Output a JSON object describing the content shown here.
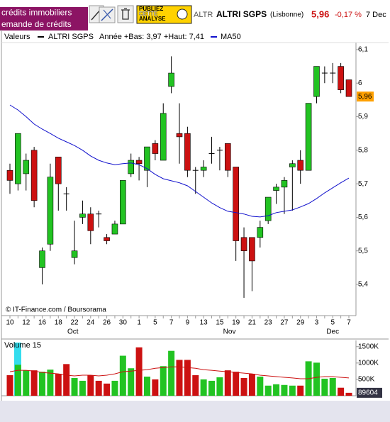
{
  "toolbar": {
    "ads": [
      "crédits immobiliers",
      "emande de crédits"
    ],
    "publish": [
      "PUBLIEZ",
      "CETTE",
      "ANALYSE"
    ]
  },
  "header": {
    "code": "ALTR",
    "name": "ALTRI SGPS",
    "market": "(Lisbonne)",
    "price": "5,96",
    "change": "-0,17 %",
    "date": "7 Dec"
  },
  "chart_data": [
    {
      "type": "candlestick",
      "legend_title": "Valeurs",
      "subtitle": "Année +Bas: 3,97 +Haut: 7,41",
      "annotation": "© IT-Finance.com / Boursorama",
      "categories": [
        "10",
        null,
        "12",
        null,
        "16",
        null,
        "18",
        null,
        "22",
        null,
        "24",
        null,
        "26",
        null,
        "30",
        null,
        "1",
        null,
        "5",
        null,
        "7",
        null,
        "9",
        null,
        "13",
        null,
        "15",
        null,
        "19",
        null,
        "21",
        null,
        "23",
        null,
        "27",
        null,
        "29",
        null,
        "3",
        null,
        "5",
        null,
        "7"
      ],
      "months": [
        "Oct",
        "Nov",
        "Dec"
      ],
      "up_color": "#22c322",
      "down_color": "#cc1111",
      "series": [
        {
          "name": "ALTRI SGPS",
          "color": "#000000",
          "open": [
            5.74,
            5.7,
            5.73,
            5.8,
            5.45,
            5.52,
            5.78,
            5.67,
            5.48,
            5.6,
            5.61,
            5.61,
            5.54,
            5.55,
            5.58,
            5.73,
            5.77,
            5.74,
            5.82,
            5.77,
            5.99,
            5.85,
            5.85,
            5.74,
            5.74,
            5.79,
            5.8,
            5.82,
            5.75,
            5.54,
            5.54,
            5.54,
            5.59,
            5.68,
            5.69,
            5.75,
            5.77,
            5.74,
            5.96,
            6.03,
            6.03,
            6.05,
            6.01
          ],
          "high": [
            5.76,
            5.85,
            5.79,
            5.81,
            5.51,
            5.76,
            5.78,
            5.69,
            5.59,
            5.65,
            5.63,
            5.62,
            5.55,
            5.59,
            5.71,
            5.79,
            5.78,
            5.81,
            5.83,
            5.94,
            6.08,
            5.94,
            5.87,
            5.75,
            5.77,
            5.84,
            5.81,
            5.82,
            5.75,
            5.57,
            5.54,
            5.59,
            5.66,
            5.7,
            5.72,
            5.77,
            5.8,
            5.94,
            6.05,
            6.05,
            6.06,
            6.06,
            6.01
          ],
          "low": [
            5.67,
            5.68,
            5.68,
            5.63,
            5.4,
            5.5,
            5.62,
            5.62,
            5.46,
            5.58,
            5.52,
            5.57,
            5.52,
            5.55,
            5.58,
            5.72,
            5.71,
            5.69,
            5.77,
            5.77,
            5.97,
            5.76,
            5.72,
            5.67,
            5.72,
            5.76,
            5.74,
            5.72,
            5.47,
            5.36,
            5.38,
            5.51,
            5.58,
            5.64,
            5.61,
            5.62,
            5.7,
            5.74,
            5.94,
            6.0,
            6.0,
            5.97,
            5.96
          ],
          "close": [
            5.71,
            5.85,
            5.77,
            5.65,
            5.5,
            5.72,
            5.7,
            5.67,
            5.5,
            5.61,
            5.56,
            5.61,
            5.53,
            5.58,
            5.71,
            5.77,
            5.76,
            5.81,
            5.79,
            5.91,
            6.03,
            5.84,
            5.74,
            5.74,
            5.75,
            5.79,
            5.8,
            5.74,
            5.53,
            5.5,
            5.47,
            5.57,
            5.66,
            5.69,
            5.71,
            5.76,
            5.74,
            5.94,
            6.05,
            6.03,
            6.03,
            5.98,
            5.96
          ]
        },
        {
          "name": "MA50",
          "color": "#1010cc",
          "values": [
            5.935,
            5.92,
            5.9,
            5.878,
            5.863,
            5.85,
            5.836,
            5.825,
            5.814,
            5.8,
            5.783,
            5.77,
            5.762,
            5.757,
            5.76,
            5.762,
            5.757,
            5.745,
            5.728,
            5.715,
            5.709,
            5.703,
            5.694,
            5.677,
            5.66,
            5.643,
            5.629,
            5.618,
            5.614,
            5.61,
            5.603,
            5.601,
            5.605,
            5.614,
            5.618,
            5.622,
            5.631,
            5.641,
            5.656,
            5.673,
            5.688,
            5.703,
            5.717
          ]
        }
      ],
      "ylim": [
        5.307,
        6.121
      ],
      "yticks": [
        {
          "value": 6.1,
          "label": "6,1"
        },
        6,
        {
          "value": 5.9,
          "label": "5,9"
        },
        {
          "value": 5.8,
          "label": "5,8"
        },
        {
          "value": 5.7,
          "label": "5,7"
        },
        {
          "value": 5.6,
          "label": "5,6"
        },
        {
          "value": 5.5,
          "label": "5,5"
        },
        {
          "value": 5.4,
          "label": "5,4"
        }
      ],
      "last_value": {
        "value": 5.96,
        "label": "5,96"
      }
    },
    {
      "type": "bar",
      "title": "Volume 15",
      "values": [
        628000,
        947000,
        777000,
        777000,
        734000,
        798000,
        670000,
        968000,
        543000,
        457000,
        628000,
        457000,
        372000,
        457000,
        1223000,
        840000,
        1479000,
        585000,
        500000,
        904000,
        1372000,
        1096000,
        1096000,
        628000,
        500000,
        457000,
        564000,
        777000,
        734000,
        543000,
        670000,
        585000,
        309000,
        351000,
        330000,
        309000,
        309000,
        1053000,
        1011000,
        521000,
        543000,
        245000,
        89604
      ],
      "colors": [
        "#cc1111",
        "#22c322",
        "#22c322",
        "#cc1111",
        "#22c322",
        "#22c322",
        "#cc1111",
        "#cc1111",
        "#22c322",
        "#22c322",
        "#cc1111",
        "#cc1111",
        "#cc1111",
        "#22c322",
        "#22c322",
        "#22c322",
        "#cc1111",
        "#22c322",
        "#cc1111",
        "#22c322",
        "#22c322",
        "#cc1111",
        "#cc1111",
        "#cc1111",
        "#22c322",
        "#22c322",
        "#22c322",
        "#cc1111",
        "#cc1111",
        "#cc1111",
        "#cc1111",
        "#22c322",
        "#22c322",
        "#22c322",
        "#22c322",
        "#22c322",
        "#cc1111",
        "#22c322",
        "#22c322",
        "#22c322",
        "#22c322",
        "#cc1111",
        "#cc1111"
      ],
      "line": {
        "color": "#cc1111",
        "values": [
          734000,
          777000,
          777000,
          755000,
          713000,
          691000,
          670000,
          628000,
          606000,
          628000,
          628000,
          606000,
          628000,
          670000,
          734000,
          755000,
          777000,
          798000,
          840000,
          862000,
          883000,
          883000,
          862000,
          840000,
          798000,
          777000,
          755000,
          734000,
          713000,
          691000,
          670000,
          628000,
          606000,
          585000,
          564000,
          543000,
          521000,
          521000,
          564000,
          585000,
          585000,
          564000,
          543000
        ]
      },
      "ylim": [
        0,
        1690000
      ],
      "yticks": [
        {
          "value": 1500000,
          "label": "1500K"
        },
        {
          "value": 1000000,
          "label": "1000K"
        },
        {
          "value": 500000,
          "label": "500K"
        }
      ],
      "last_value": 89604
    }
  ]
}
